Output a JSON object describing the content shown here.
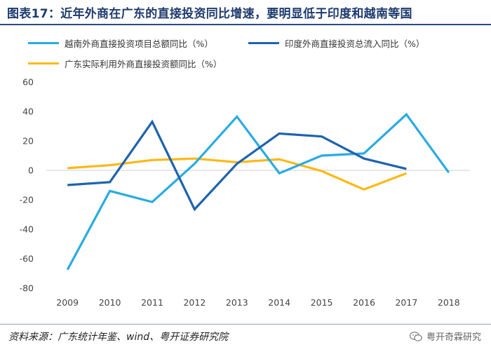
{
  "header": {
    "title": "图表17：近年外商在广东的直接投资同比增速，要明显低于印度和越南等国"
  },
  "footer": {
    "source": "资料来源：广东统计年鉴、wind、粤开证券研究院",
    "watermark": "粤开奇霖研究"
  },
  "colors": {
    "title": "#1f3b6e",
    "accent_rule": "#2b4a80",
    "series_vietnam": "#29ABE2",
    "series_india": "#1E63AE",
    "series_guangdong": "#FBB917"
  },
  "icons": {
    "watermark": "wechat-icon"
  },
  "chart_data": {
    "type": "line",
    "title": "",
    "xlabel": "",
    "ylabel": "",
    "categories": [
      "2009",
      "2010",
      "2011",
      "2012",
      "2013",
      "2014",
      "2015",
      "2016",
      "2017",
      "2018"
    ],
    "ylim": [
      -80,
      60
    ],
    "yticks": [
      60,
      40,
      20,
      0,
      -20,
      -40,
      -60,
      -80
    ],
    "grid": false,
    "legend_position": "top",
    "series": [
      {
        "name": "越南外商直接投资项目总额同比（%）",
        "color": "#29ABE2",
        "values": [
          -67.5,
          -14,
          -21.5,
          4.5,
          36.5,
          -2,
          10,
          11.5,
          38,
          -1.5
        ]
      },
      {
        "name": "印度外商直接投资总流入同比（%）",
        "color": "#1E63AE",
        "values": [
          -10,
          -8,
          33,
          -26.5,
          4.5,
          25,
          23,
          8,
          1,
          null
        ]
      },
      {
        "name": "广东实际利用外商直接投资额同比（%）",
        "color": "#FBB917",
        "values": [
          1.5,
          3.5,
          7,
          8,
          5.5,
          7.5,
          -0.5,
          -13,
          -2,
          null
        ]
      }
    ]
  }
}
